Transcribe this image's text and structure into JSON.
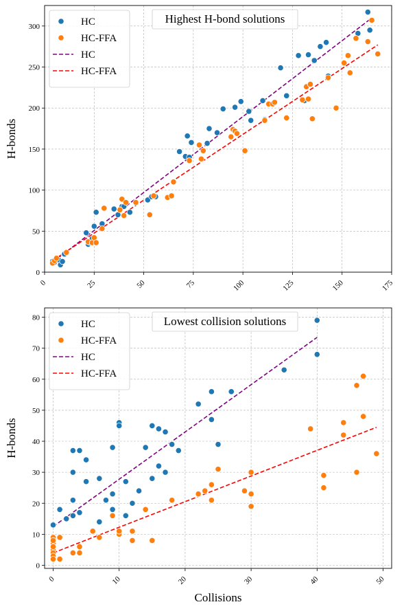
{
  "colors": {
    "hc": "#1f77b4",
    "hc_ffa": "#ff7f0e",
    "fit_hc": "#800080",
    "fit_hc_ffa": "#ff0000",
    "grid": "#b0b0b0"
  },
  "chart_data": [
    {
      "type": "scatter",
      "title": "Highest H-bond solutions",
      "xlabel": "",
      "ylabel": "H-bonds",
      "xlim": [
        0,
        175
      ],
      "ylim": [
        0,
        325
      ],
      "xticks": [
        "0",
        "25",
        "50",
        "75",
        "100",
        "125",
        "150",
        "175"
      ],
      "yticks": [
        "0",
        "50",
        "100",
        "150",
        "200",
        "250",
        "300"
      ],
      "grid": true,
      "legend": "upper-left",
      "legend_entries": [
        "HC",
        "HC-FFA",
        "HC",
        "HC-FFA"
      ],
      "series": [
        {
          "name": "HC",
          "kind": "points",
          "x": [
            4,
            5,
            7,
            8,
            9,
            10,
            21,
            22,
            23,
            24,
            25,
            26,
            29,
            35,
            37,
            39,
            40,
            43,
            52,
            54,
            56,
            68,
            71,
            72,
            73,
            74,
            82,
            83,
            87,
            90,
            96,
            99,
            103,
            104,
            110,
            111,
            119,
            122,
            128,
            131,
            133,
            136,
            139,
            142,
            143,
            158,
            163,
            164
          ],
          "y": [
            13,
            12,
            15,
            9,
            13,
            22,
            48,
            34,
            36,
            41,
            56,
            73,
            59,
            77,
            70,
            80,
            80,
            73,
            88,
            92,
            92,
            147,
            141,
            166,
            140,
            158,
            157,
            175,
            170,
            199,
            201,
            208,
            196,
            185,
            209,
            186,
            249,
            215,
            264,
            209,
            265,
            258,
            275,
            280,
            239,
            291,
            317,
            295
          ]
        },
        {
          "name": "HC-FFA",
          "kind": "points",
          "x": [
            4,
            5,
            6,
            11,
            22,
            24,
            25,
            26,
            29,
            30,
            38,
            39,
            40,
            41,
            46,
            53,
            55,
            62,
            64,
            65,
            73,
            78,
            79,
            80,
            94,
            95,
            96,
            97,
            101,
            111,
            113,
            115,
            116,
            122,
            130,
            132,
            133,
            134,
            135,
            143,
            147,
            151,
            153,
            154,
            157,
            163,
            165,
            168
          ],
          "y": [
            11,
            14,
            17,
            24,
            37,
            36,
            42,
            36,
            53,
            78,
            76,
            89,
            69,
            85,
            85,
            70,
            93,
            91,
            93,
            110,
            136,
            155,
            138,
            148,
            165,
            174,
            172,
            169,
            148,
            185,
            205,
            205,
            207,
            188,
            210,
            226,
            211,
            229,
            187,
            237,
            200,
            255,
            264,
            243,
            285,
            281,
            307,
            266
          ]
        },
        {
          "name": "HC",
          "kind": "fit",
          "x": [
            4,
            164
          ],
          "y": [
            12,
            308
          ]
        },
        {
          "name": "HC-FFA",
          "kind": "fit",
          "x": [
            4,
            168
          ],
          "y": [
            14,
            277
          ]
        }
      ]
    },
    {
      "type": "scatter",
      "title": "Lowest collision solutions",
      "xlabel": "Collisions",
      "ylabel": "H-bonds",
      "xlim": [
        -1.3,
        51.3
      ],
      "ylim": [
        -1,
        83
      ],
      "xticks": [
        "0",
        "10",
        "20",
        "30",
        "40",
        "50"
      ],
      "yticks": [
        "0",
        "10",
        "20",
        "30",
        "40",
        "50",
        "60",
        "70",
        "80"
      ],
      "grid": true,
      "legend": "upper-left",
      "legend_entries": [
        "HC",
        "HC-FFA",
        "HC",
        "HC-FFA"
      ],
      "series": [
        {
          "name": "HC",
          "kind": "points",
          "x": [
            0,
            1,
            1,
            2,
            3,
            3,
            3,
            3,
            4,
            4,
            5,
            5,
            7,
            7,
            8,
            9,
            9,
            9,
            10,
            10,
            11,
            11,
            12,
            13,
            14,
            15,
            15,
            16,
            16,
            17,
            17,
            18,
            19,
            22,
            24,
            24,
            25,
            27,
            35,
            40,
            40
          ],
          "y": [
            13,
            18,
            9,
            15,
            21,
            16,
            30,
            37,
            37,
            17,
            34,
            27,
            28,
            14,
            21,
            38,
            23,
            18,
            46,
            45,
            27,
            16,
            20,
            24,
            38,
            45,
            28,
            44,
            32,
            43,
            30,
            39,
            37,
            52,
            56,
            47,
            39,
            56,
            63,
            79,
            68
          ]
        },
        {
          "name": "HC-FFA",
          "kind": "points",
          "x": [
            0,
            0,
            0,
            0,
            0,
            0,
            0,
            0,
            0,
            1,
            1,
            3,
            4,
            4,
            6,
            7,
            9,
            10,
            10,
            12,
            12,
            14,
            15,
            18,
            22,
            23,
            24,
            24,
            25,
            29,
            30,
            30,
            30,
            39,
            41,
            41,
            44,
            44,
            46,
            46,
            47,
            47,
            49
          ],
          "y": [
            9,
            7,
            6,
            5,
            4,
            3,
            2,
            6,
            8,
            2,
            9,
            4,
            4,
            6,
            11,
            9,
            16,
            10,
            11,
            11,
            8,
            18,
            8,
            21,
            23,
            24,
            26,
            21,
            31,
            24,
            23,
            19,
            30,
            44,
            25,
            29,
            42,
            46,
            30,
            58,
            61,
            48,
            36
          ]
        },
        {
          "name": "HC",
          "kind": "fit",
          "x": [
            0,
            40
          ],
          "y": [
            12.5,
            73.5
          ]
        },
        {
          "name": "HC-FFA",
          "kind": "fit",
          "x": [
            0,
            49
          ],
          "y": [
            4,
            44.5
          ]
        }
      ]
    }
  ]
}
